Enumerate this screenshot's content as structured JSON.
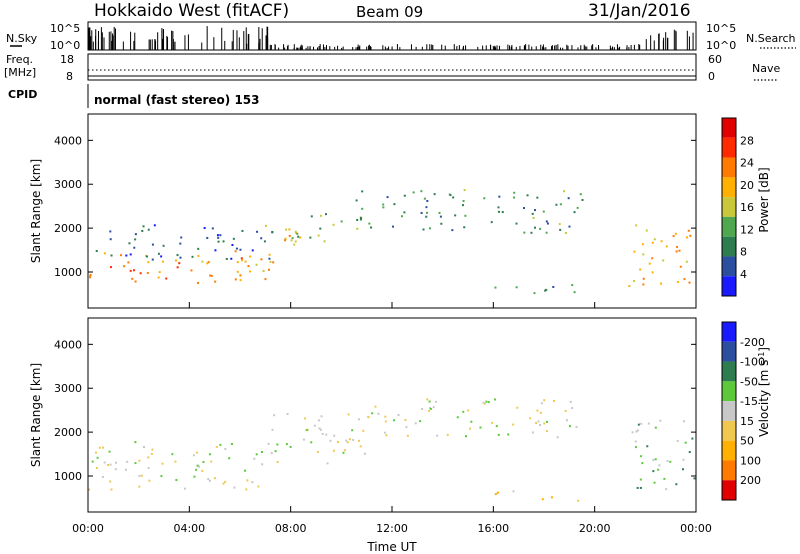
{
  "header": {
    "station": "Hokkaido West (fitACF)",
    "beam": "Beam 09",
    "date": "31/Jan/2016"
  },
  "top_panels": {
    "nsky_label": "N.Sky",
    "nsky_ticks": [
      "10^5",
      "10^0"
    ],
    "nsearch_label": "N.Search",
    "nsearch_ticks": [
      "10^5",
      "10^0"
    ],
    "freq_label": "Freq.",
    "freq_unit": "[MHz]",
    "freq_ticks": [
      "18",
      "8"
    ],
    "nave_label": "Nave",
    "nave_ticks": [
      "60",
      "0"
    ],
    "cpid_label": "CPID",
    "cpid_value": "normal (fast stereo) 153"
  },
  "chart_data": [
    {
      "type": "heatmap",
      "title": "",
      "xlabel": "Time UT",
      "ylabel": "Slant Range [km]",
      "x_ticks": [
        "00:00",
        "04:00",
        "08:00",
        "12:00",
        "16:00",
        "20:00",
        "00:00"
      ],
      "xlim_hours": [
        0,
        24
      ],
      "y_ticks": [
        1000,
        2000,
        3000,
        4000
      ],
      "ylim": [
        180,
        4600
      ],
      "colorbar": {
        "label": "Power [dB]",
        "ticks": [
          "4",
          "8",
          "12",
          "16",
          "20",
          "24",
          "28"
        ],
        "range": [
          0,
          32
        ],
        "colors": [
          "#1a1aff",
          "#2b4f9e",
          "#2e7d4f",
          "#4fa84f",
          "#c8c83a",
          "#ffb000",
          "#ff7a00",
          "#ff2a00",
          "#e00000"
        ]
      },
      "regions": [
        {
          "name": "daytime-E-F",
          "t0": 0,
          "t1": 7.3,
          "r0": 700,
          "r1": 1500,
          "level": 22
        },
        {
          "name": "morning-band-high",
          "t0": 0,
          "t1": 7.3,
          "r0": 1300,
          "r1": 2100,
          "level": 6
        },
        {
          "name": "morning-rise",
          "t0": 6.8,
          "t1": 8.2,
          "r0": 1200,
          "r1": 2300,
          "level": 18
        },
        {
          "name": "midday-F",
          "t0": 8.0,
          "t1": 10.8,
          "r0": 1700,
          "r1": 2400,
          "level": 14
        },
        {
          "name": "afternoon-F",
          "t0": 10.5,
          "t1": 19.5,
          "r0": 1900,
          "r1": 2900,
          "level": 10
        },
        {
          "name": "afternoon-ground",
          "t0": 15.5,
          "t1": 19.5,
          "r0": 500,
          "r1": 750,
          "level": 9
        },
        {
          "name": "dusk-band",
          "t0": 21.3,
          "t1": 23.9,
          "r0": 700,
          "r1": 2200,
          "level": 20
        }
      ]
    },
    {
      "type": "heatmap",
      "title": "",
      "xlabel": "Time UT",
      "ylabel": "Slant Range [km]",
      "x_ticks": [
        "00:00",
        "04:00",
        "08:00",
        "12:00",
        "16:00",
        "20:00",
        "00:00"
      ],
      "xlim_hours": [
        0,
        24
      ],
      "y_ticks": [
        1000,
        2000,
        3000,
        4000
      ],
      "ylim": [
        180,
        4600
      ],
      "colorbar": {
        "label": "Velocity [m s^-1]",
        "ticks": [
          "200",
          "100",
          "50",
          "15",
          "-15",
          "-50",
          "-100",
          "-200"
        ],
        "range": [
          -250,
          250
        ],
        "colors": [
          "#e00000",
          "#ff7a00",
          "#ffb000",
          "#f0c850",
          "#c8c8c8",
          "#5cc83a",
          "#2e7d4f",
          "#2b4f9e",
          "#1a1aff"
        ]
      },
      "regions": [
        {
          "name": "daytime-grey",
          "t0": 0,
          "t1": 7.3,
          "r0": 700,
          "r1": 1800,
          "level": 0
        },
        {
          "name": "midday-grey",
          "t0": 7.0,
          "t1": 11.0,
          "r0": 1300,
          "r1": 2500,
          "level": 0
        },
        {
          "name": "afternoon-grey",
          "t0": 11.0,
          "t1": 19.5,
          "r0": 1900,
          "r1": 2800,
          "level": 0
        },
        {
          "name": "afternoon-orange-streak",
          "t0": 16.0,
          "t1": 19.5,
          "r0": 450,
          "r1": 700,
          "level": -60
        },
        {
          "name": "dusk-green",
          "t0": 21.3,
          "t1": 23.9,
          "r0": 700,
          "r1": 2300,
          "level": 45
        }
      ]
    }
  ]
}
